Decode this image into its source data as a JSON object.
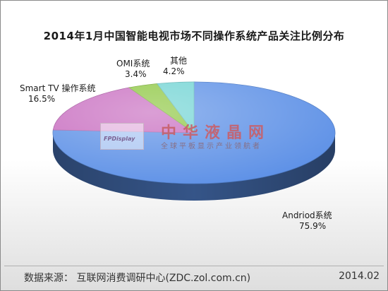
{
  "chart_data": {
    "type": "pie",
    "title": "2014年1月中国智能电视市场不同操作系统产品关注比例分布",
    "slices": [
      {
        "name": "Andriod系统",
        "value": 75.9,
        "label": "75.9%",
        "color": "#5b8fe6"
      },
      {
        "name": "Smart TV 操作系统",
        "value": 16.5,
        "label": "16.5%",
        "color": "#c76bbf"
      },
      {
        "name": "OMI系统",
        "value": 3.4,
        "label": "3.4%",
        "color": "#8cc63f"
      },
      {
        "name": "其他",
        "value": 4.2,
        "label": "4.2%",
        "color": "#6fd3d3"
      }
    ]
  },
  "watermark": {
    "brand": "FPDisplay",
    "title": "中华液晶网",
    "subtitle": "全球平板显示产业领航者"
  },
  "footer": {
    "source": "数据来源：  互联网消费调研中心(ZDC.zol.com.cn)",
    "date": "2014.02"
  }
}
